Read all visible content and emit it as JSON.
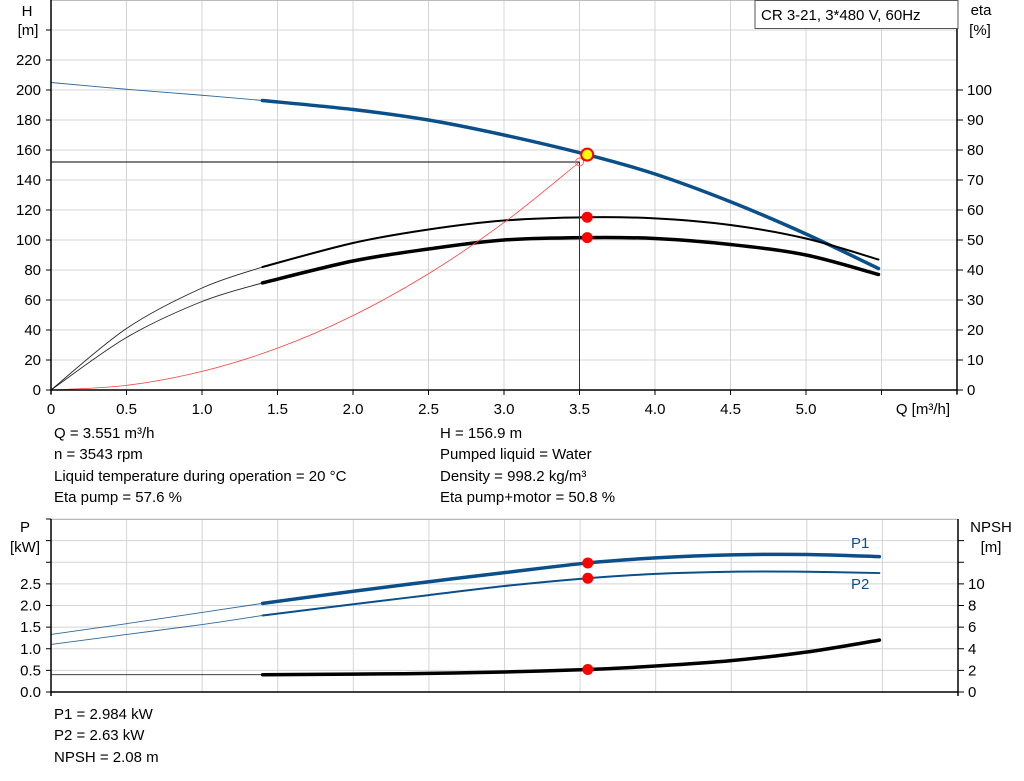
{
  "chart_data": [
    {
      "type": "line",
      "legend_box": "CR 3-21, 3*480 V, 60Hz",
      "xlabel": "Q [m³/h]",
      "ylabel_left": [
        "H",
        "[m]"
      ],
      "ylabel_right": [
        "eta",
        "[%]"
      ],
      "xlim": [
        0,
        6
      ],
      "ylim_left": [
        0,
        260
      ],
      "ylim_right": [
        -130,
        130
      ],
      "x_ticks": [
        0,
        0.5,
        1.0,
        1.5,
        2.0,
        2.5,
        3.0,
        3.5,
        4.0,
        4.5,
        5.0,
        5.5
      ],
      "x_tick_labels": [
        "0",
        "0.5",
        "1.0",
        "1.5",
        "2.0",
        "2.5",
        "3.0",
        "3.5",
        "4.0",
        "4.5",
        "5.0",
        ""
      ],
      "y_left_ticks": [
        0,
        20,
        40,
        60,
        80,
        100,
        120,
        140,
        160,
        180,
        200,
        220,
        240
      ],
      "y_left_tick_labels": [
        "0",
        "20",
        "40",
        "60",
        "80",
        "100",
        "120",
        "140",
        "160",
        "180",
        "200",
        "220",
        ""
      ],
      "y_right_ticks": [
        0,
        10,
        20,
        30,
        40,
        50,
        60,
        70,
        80,
        90,
        100
      ],
      "y_right_tick_labels": [
        "0",
        "10",
        "20",
        "30",
        "40",
        "50",
        "60",
        "70",
        "80",
        "90",
        "100"
      ],
      "grid": true,
      "operating_range_from": 1.4,
      "series": [
        {
          "key": "H",
          "axis": "left",
          "color": "#0b4f8a",
          "bold": 3.5,
          "x": [
            0,
            0.5,
            1.0,
            1.4,
            2.0,
            2.5,
            3.0,
            3.551,
            4.0,
            4.5,
            5.0,
            5.48
          ],
          "y": [
            205,
            200.5,
            196.5,
            193,
            187,
            180,
            170,
            156.9,
            144,
            125.5,
            104,
            81
          ]
        },
        {
          "key": "eta_pump",
          "axis": "right",
          "color": "#000000",
          "bold": 2,
          "x": [
            0,
            0.5,
            1.0,
            1.4,
            2.0,
            2.5,
            3.0,
            3.551,
            4.0,
            4.5,
            5.0,
            5.48
          ],
          "y": [
            0,
            20.5,
            34,
            41,
            49,
            53.5,
            56.5,
            57.6,
            57.2,
            55,
            50.5,
            43.5
          ]
        },
        {
          "key": "eta_total",
          "axis": "right",
          "color": "#000000",
          "bold": 3.5,
          "x": [
            0,
            0.5,
            1.0,
            1.4,
            2.0,
            2.5,
            3.0,
            3.551,
            4.0,
            4.5,
            5.0,
            5.48
          ],
          "y": [
            0,
            17.5,
            29.5,
            35.7,
            43,
            47,
            50,
            50.8,
            50.5,
            48.5,
            45,
            38.5
          ]
        },
        {
          "key": "system_curve",
          "axis": "left",
          "color": "#ff4040",
          "bold": 0.8,
          "thin_only": true,
          "x": [
            0,
            0.5,
            1.0,
            1.5,
            2.0,
            2.5,
            3.0,
            3.5
          ],
          "y": [
            0,
            3.1,
            12.4,
            27.9,
            49.6,
            77.5,
            111.6,
            152
          ]
        }
      ],
      "duty_point": {
        "Q": 3.5,
        "H": 152
      },
      "operating_point": {
        "Q": 3.551,
        "H": 156.9,
        "eta_pump": 57.6,
        "eta_total": 50.8
      },
      "marker_colors": {
        "operating": "#ffff00",
        "marker": "#ff0000"
      }
    },
    {
      "type": "line",
      "ylabel_left": [
        "P",
        "[kW]"
      ],
      "ylabel_right": [
        "NPSH",
        "[m]"
      ],
      "xlim": [
        0,
        6
      ],
      "ylim_left": [
        0,
        4.0
      ],
      "ylim_right": [
        0,
        16
      ],
      "x_ticks": [
        0,
        0.5,
        1.0,
        1.5,
        2.0,
        2.5,
        3.0,
        3.5,
        4.0,
        4.5,
        5.0,
        5.5
      ],
      "y_left_ticks": [
        0,
        0.5,
        1.0,
        1.5,
        2.0,
        2.5,
        3.0,
        3.5,
        4.0
      ],
      "y_left_tick_labels": [
        "0.0",
        "0.5",
        "1.0",
        "1.5",
        "2.0",
        "2.5",
        "",
        "",
        ""
      ],
      "y_right_ticks": [
        0,
        2,
        4,
        6,
        8,
        10,
        12,
        14
      ],
      "y_right_tick_labels": [
        "0",
        "2",
        "4",
        "6",
        "8",
        "10",
        "",
        ""
      ],
      "grid": true,
      "operating_range_from": 1.4,
      "series": [
        {
          "key": "P1",
          "name": "P1",
          "axis": "left",
          "color": "#0b4f8a",
          "bold": 3.5,
          "x": [
            0,
            0.5,
            1.0,
            1.4,
            2.0,
            2.5,
            3.0,
            3.551,
            4.0,
            4.5,
            5.0,
            5.48
          ],
          "y": [
            1.33,
            1.58,
            1.84,
            2.05,
            2.33,
            2.55,
            2.76,
            2.984,
            3.1,
            3.17,
            3.18,
            3.13
          ]
        },
        {
          "key": "P2",
          "name": "P2",
          "axis": "left",
          "color": "#0b4f8a",
          "bold": 2,
          "x": [
            0,
            0.5,
            1.0,
            1.4,
            2.0,
            2.5,
            3.0,
            3.551,
            4.0,
            4.5,
            5.0,
            5.48
          ],
          "y": [
            1.1,
            1.33,
            1.56,
            1.77,
            2.03,
            2.24,
            2.45,
            2.63,
            2.73,
            2.78,
            2.78,
            2.75
          ]
        },
        {
          "key": "NPSH",
          "axis": "right",
          "color": "#000000",
          "bold": 3.5,
          "x": [
            0,
            0.5,
            1.0,
            1.4,
            2.0,
            2.5,
            3.0,
            3.551,
            4.0,
            4.5,
            5.0,
            5.48
          ],
          "y": [
            1.6,
            1.6,
            1.6,
            1.6,
            1.65,
            1.72,
            1.85,
            2.08,
            2.4,
            2.9,
            3.7,
            4.8
          ]
        }
      ],
      "operating_point": {
        "Q": 3.551,
        "P1": 2.984,
        "P2": 2.63,
        "NPSH": 2.08
      }
    }
  ],
  "info_top": {
    "left": [
      "Q = 3.551 m³/h",
      "n = 3543 rpm",
      "Liquid temperature during operation = 20 °C",
      "Eta pump = 57.6 %"
    ],
    "right": [
      "H = 156.9 m",
      "Pumped liquid = Water",
      "Density = 998.2 kg/m³",
      "Eta pump+motor = 50.8 %"
    ]
  },
  "info_bottom": [
    "P1 = 2.984 kW",
    "P2 = 2.63 kW",
    "NPSH = 2.08 m"
  ]
}
